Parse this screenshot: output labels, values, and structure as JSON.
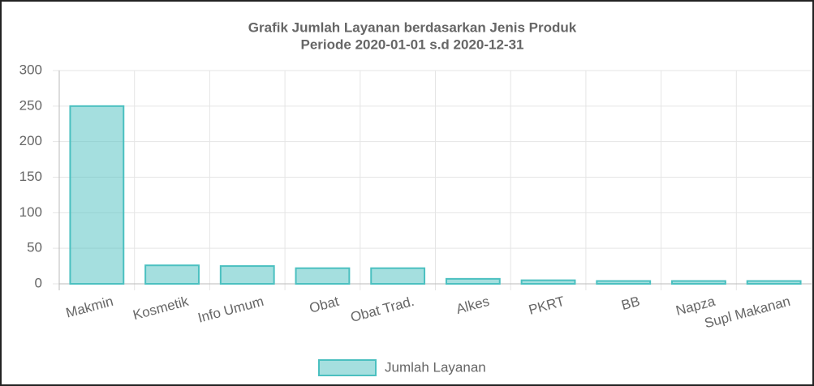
{
  "chart_data": {
    "type": "bar",
    "title": [
      "Grafik Jumlah Layanan berdasarkan Jenis Produk",
      "Periode 2020-01-01 s.d 2020-12-31"
    ],
    "categories": [
      "Makmin",
      "Kosmetik",
      "Info Umum",
      "Obat",
      "Obat Trad.",
      "Alkes",
      "PKRT",
      "BB",
      "Napza",
      "Supl Makanan"
    ],
    "series": [
      {
        "name": "Jumlah Layanan",
        "color": "#4bc0c0",
        "values": [
          250,
          26,
          25,
          22,
          22,
          7,
          5,
          4,
          4,
          4
        ]
      }
    ],
    "ylim": [
      0,
      300
    ],
    "yticks": [
      0,
      50,
      100,
      150,
      200,
      250,
      300
    ],
    "grid": true,
    "legend": "bottom"
  }
}
